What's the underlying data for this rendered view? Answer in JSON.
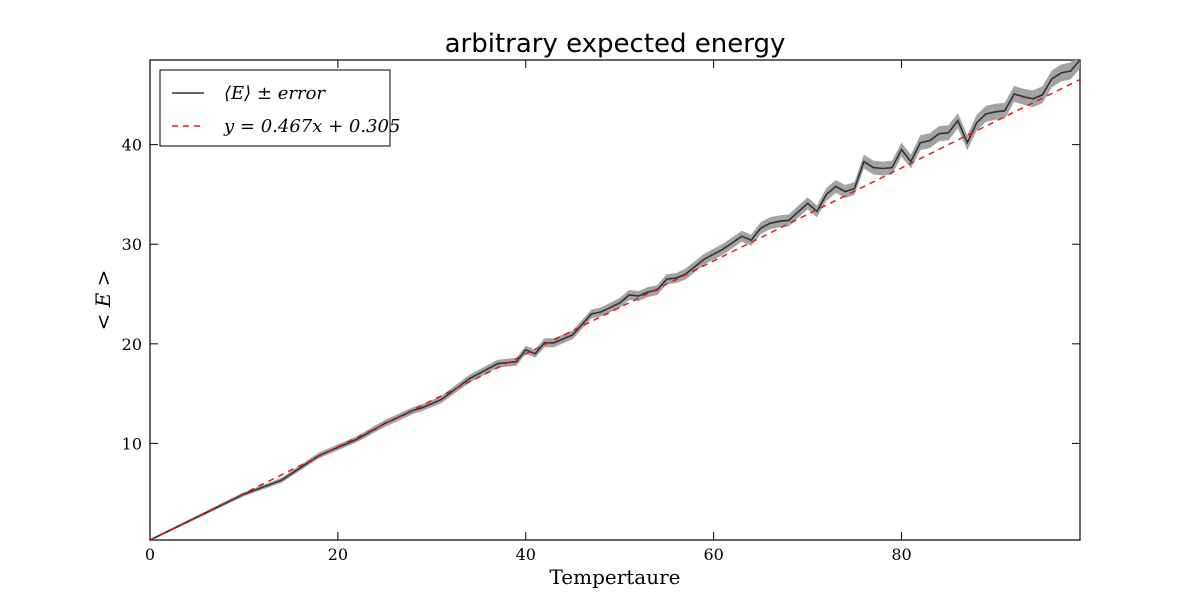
{
  "chart_data": {
    "type": "line",
    "title": "arbitrary expected energy",
    "xlabel": "Tempertaure",
    "ylabel": "< E >",
    "xlim": [
      0,
      99
    ],
    "ylim": [
      0.3,
      48.5
    ],
    "x_ticks": [
      0,
      20,
      40,
      60,
      80
    ],
    "y_ticks": [
      10,
      20,
      30,
      40
    ],
    "x_tick_labels": [
      "0",
      "20",
      "40",
      "60",
      "80"
    ],
    "y_tick_labels": [
      "10",
      "20",
      "30",
      "40"
    ],
    "grid": false,
    "legend_position": "top-left",
    "series": [
      {
        "name": "⟨E⟩ ± error",
        "color": "#333333",
        "band_color": "#999999",
        "style": "solid",
        "x": [
          0,
          5,
          10,
          14,
          18,
          22,
          25,
          28,
          29,
          31,
          34,
          37,
          39,
          40,
          41,
          42,
          43,
          45,
          47,
          48,
          50,
          51,
          52,
          53,
          54,
          55,
          56,
          57,
          59,
          61,
          63,
          64,
          65,
          66,
          67,
          68,
          70,
          71,
          72,
          73,
          74,
          75,
          76,
          77,
          78,
          79,
          80,
          81,
          82,
          83,
          84,
          85,
          86,
          87,
          88,
          89,
          90,
          91,
          92,
          93,
          94,
          95,
          96,
          97,
          98,
          99
        ],
        "values": [
          0.3,
          2.6,
          4.9,
          6.3,
          8.8,
          10.4,
          12.0,
          13.3,
          13.6,
          14.4,
          16.5,
          18.0,
          18.2,
          19.4,
          19.0,
          20.1,
          20.1,
          20.9,
          23.0,
          23.2,
          24.1,
          24.9,
          24.8,
          25.2,
          25.4,
          26.5,
          26.6,
          27.0,
          28.5,
          29.5,
          30.8,
          30.4,
          31.6,
          32.1,
          32.3,
          32.4,
          34.1,
          33.3,
          35.0,
          35.8,
          35.3,
          35.6,
          38.3,
          37.7,
          37.6,
          37.7,
          39.5,
          38.3,
          40.2,
          40.4,
          41.1,
          41.2,
          42.4,
          40.2,
          42.2,
          43.1,
          43.3,
          43.4,
          45.1,
          44.8,
          44.6,
          45.0,
          46.6,
          47.2,
          47.4,
          48.5
        ],
        "error": [
          0.1,
          0.15,
          0.2,
          0.25,
          0.3,
          0.3,
          0.35,
          0.35,
          0.35,
          0.35,
          0.4,
          0.4,
          0.4,
          0.4,
          0.4,
          0.45,
          0.45,
          0.45,
          0.45,
          0.45,
          0.5,
          0.5,
          0.5,
          0.5,
          0.5,
          0.5,
          0.5,
          0.55,
          0.55,
          0.55,
          0.55,
          0.55,
          0.6,
          0.6,
          0.6,
          0.6,
          0.6,
          0.6,
          0.65,
          0.65,
          0.65,
          0.65,
          0.7,
          0.7,
          0.7,
          0.7,
          0.7,
          0.7,
          0.75,
          0.75,
          0.75,
          0.75,
          0.75,
          0.75,
          0.8,
          0.8,
          0.8,
          0.8,
          0.8,
          0.8,
          0.85,
          0.85,
          0.85,
          0.85,
          0.85,
          0.85
        ]
      },
      {
        "name": "y = 0.467x + 0.305",
        "color": "#e41a1c",
        "style": "dashed",
        "slope": 0.467,
        "intercept": 0.305
      }
    ]
  }
}
